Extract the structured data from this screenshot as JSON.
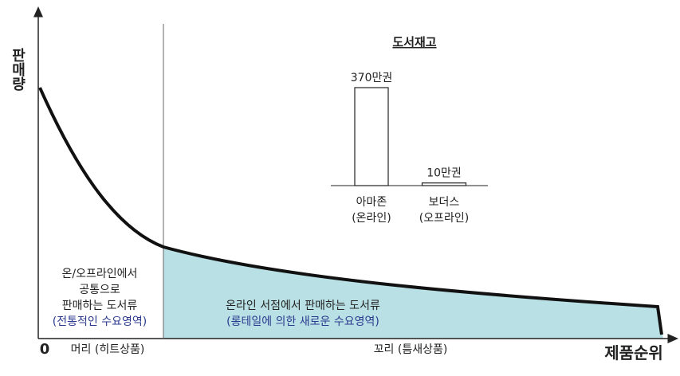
{
  "diagram": {
    "y_axis_label": "판매량",
    "x_axis_label": "제품순위",
    "origin_label": "0",
    "head_label": "머리 (히트상품)",
    "tail_label": "꼬리 (틈새상품)",
    "head_text": [
      "온/오프라인에서",
      "공통으로",
      "판매하는 도서류"
    ],
    "head_note": "(전통적인 수요영역)",
    "tail_text": "온라인 서점에서 판매하는 도서류",
    "tail_note": "(롱테일에 의한 새로운 수요영역)"
  },
  "chart_data": {
    "type": "bar",
    "title": "도서재고",
    "categories": [
      "아마존\n(온라인)",
      "보더스\n(오프라인)"
    ],
    "values": [
      370,
      10
    ],
    "value_labels": [
      "370만권",
      "10만권"
    ],
    "color": "#ffffff"
  }
}
